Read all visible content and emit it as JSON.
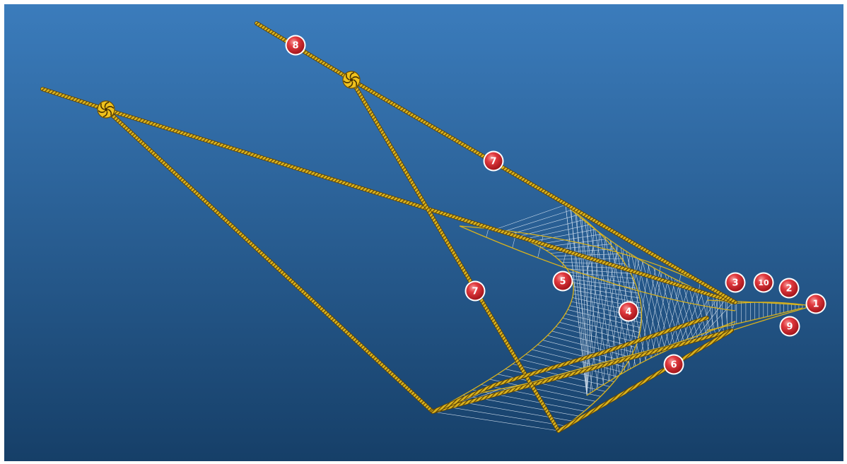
{
  "colors": {
    "background_top": "#3b7cbc",
    "background_bottom": "#163f68",
    "rope": "#d9b21c",
    "rope_stripe": "#6a4e08",
    "net_mesh": "#e8f2fc",
    "badge": "#d6262c"
  },
  "icons": {
    "float_buoy": "float-buoy-icon",
    "callout_badge": "numbered-callout-icon"
  },
  "callouts": [
    {
      "id": "c1",
      "label": "1"
    },
    {
      "id": "c2",
      "label": "2"
    },
    {
      "id": "c3",
      "label": "3"
    },
    {
      "id": "c4",
      "label": "4"
    },
    {
      "id": "c5",
      "label": "5"
    },
    {
      "id": "c6",
      "label": "6"
    },
    {
      "id": "c7a",
      "label": "7"
    },
    {
      "id": "c7b",
      "label": "7"
    },
    {
      "id": "c8",
      "label": "8"
    },
    {
      "id": "c9",
      "label": "9"
    },
    {
      "id": "c10",
      "label": "10"
    }
  ]
}
